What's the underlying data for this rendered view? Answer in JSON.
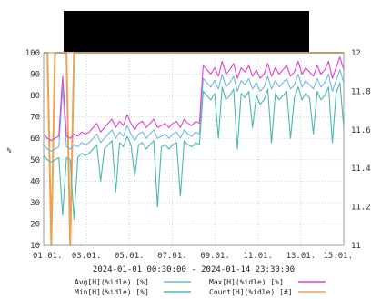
{
  "chart_data": {
    "type": "line",
    "title": "",
    "subtitle": "2024-01-01 00:30:00 - 2024-01-14 23:30:00",
    "xlabel": "",
    "ylabel": "%",
    "ylim": [
      10,
      100
    ],
    "y2lim": [
      11,
      12
    ],
    "grid": true,
    "legend_position": "bottom",
    "x_tick_labels": [
      "01.01.",
      "03.01.",
      "05.01.",
      "07.01.",
      "09.01.",
      "11.01.",
      "13.01.",
      "15.01."
    ],
    "y_ticks": [
      10,
      20,
      30,
      40,
      50,
      60,
      70,
      80,
      90,
      100
    ],
    "y2_ticks": [
      "11",
      "11.2",
      "11.4",
      "11.6",
      "11.8",
      "12"
    ],
    "series": [
      {
        "name": "Avg[H](%idle) [%]",
        "color": "#6fb7e8",
        "axis": "left",
        "values": [
          57,
          55,
          54,
          55,
          56,
          84,
          56,
          55,
          57,
          56,
          58,
          57,
          58,
          60,
          62,
          58,
          60,
          62,
          64,
          60,
          63,
          61,
          66,
          62,
          59,
          62,
          63,
          60,
          62,
          64,
          60,
          61,
          62,
          60,
          62,
          63,
          60,
          64,
          62,
          61,
          63,
          62,
          88,
          86,
          84,
          87,
          83,
          90,
          84,
          86,
          89,
          82,
          87,
          85,
          88,
          83,
          86,
          82,
          84,
          89,
          83,
          87,
          84,
          86,
          88,
          83,
          85,
          90,
          84,
          87,
          85,
          83,
          88,
          84,
          86,
          90,
          82,
          87,
          92,
          86
        ]
      },
      {
        "name": "Max[H](%idle) [%]",
        "color": "#e040d0",
        "axis": "left",
        "values": [
          62,
          60,
          59,
          60,
          61,
          89,
          61,
          60,
          62,
          61,
          63,
          62,
          63,
          65,
          67,
          63,
          65,
          67,
          69,
          65,
          68,
          66,
          71,
          67,
          64,
          67,
          68,
          65,
          67,
          69,
          65,
          66,
          67,
          65,
          67,
          68,
          65,
          69,
          67,
          66,
          68,
          67,
          94,
          92,
          90,
          93,
          89,
          96,
          90,
          92,
          95,
          88,
          93,
          91,
          94,
          89,
          92,
          88,
          90,
          95,
          89,
          93,
          90,
          92,
          94,
          89,
          91,
          96,
          90,
          93,
          91,
          89,
          94,
          90,
          92,
          96,
          88,
          93,
          98,
          92
        ]
      },
      {
        "name": "Min[H](%idle) [%]",
        "color": "#4bb8b0",
        "axis": "left",
        "values": [
          52,
          50,
          49,
          50,
          51,
          24,
          51,
          50,
          22,
          51,
          53,
          52,
          53,
          55,
          57,
          40,
          55,
          57,
          59,
          35,
          58,
          56,
          61,
          57,
          42,
          57,
          58,
          55,
          57,
          59,
          28,
          56,
          57,
          55,
          57,
          58,
          33,
          59,
          57,
          56,
          58,
          57,
          82,
          80,
          78,
          81,
          60,
          84,
          78,
          80,
          83,
          55,
          81,
          79,
          82,
          65,
          80,
          76,
          78,
          83,
          58,
          81,
          78,
          80,
          82,
          60,
          79,
          84,
          78,
          81,
          79,
          62,
          82,
          78,
          80,
          84,
          58,
          81,
          86,
          65
        ]
      },
      {
        "name": "Count[H](%idle) [#]",
        "color": "#f0a050",
        "axis": "right",
        "values": [
          12,
          12,
          11,
          12,
          12,
          12,
          12,
          11,
          12,
          12,
          12,
          12,
          12,
          12,
          12,
          12,
          12,
          12,
          12,
          12,
          12,
          12,
          12,
          12,
          12,
          12,
          12,
          12,
          12,
          12,
          12,
          12,
          12,
          12,
          12,
          12,
          12,
          12,
          12,
          12,
          12,
          12,
          12,
          12,
          12,
          12,
          12,
          12,
          12,
          12,
          12,
          12,
          12,
          12,
          12,
          12,
          12,
          12,
          12,
          12,
          12,
          12,
          12,
          12,
          12,
          12,
          12,
          12,
          12,
          12,
          12,
          12,
          12,
          12,
          12,
          12,
          12,
          12,
          12,
          12
        ]
      }
    ]
  }
}
